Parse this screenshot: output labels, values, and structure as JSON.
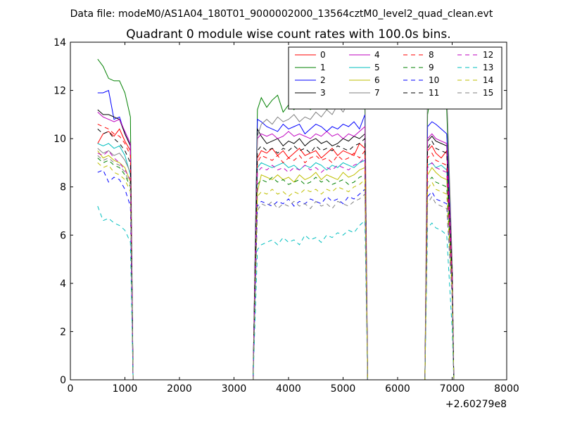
{
  "chart_data": {
    "type": "line",
    "suptitle": "Data file: modeM0/AS1A04_180T01_9000002000_13564cztM0_level2_quad_clean.evt",
    "title": "Quadrant 0 module wise count rates with 100.0s bins.",
    "xlabel": "",
    "ylabel": "",
    "x_offset_label": "+2.60279e8",
    "xlim": [
      0,
      8000
    ],
    "ylim": [
      0,
      14
    ],
    "xticks": [
      0,
      1000,
      2000,
      3000,
      4000,
      5000,
      6000,
      7000,
      8000
    ],
    "yticks": [
      0,
      2,
      4,
      6,
      8,
      10,
      12,
      14
    ],
    "legend_position": "top-right",
    "legend_columns": 4,
    "x": [
      500,
      600,
      700,
      800,
      900,
      1000,
      1100,
      1150,
      1230,
      1300,
      1400,
      1500,
      1600,
      1700,
      1800,
      1900,
      2000,
      2100,
      2200,
      2300,
      2400,
      2500,
      2600,
      2700,
      2800,
      2900,
      3000,
      3100,
      3200,
      3300,
      3350,
      3430,
      3500,
      3600,
      3700,
      3800,
      3900,
      4000,
      4100,
      4200,
      4300,
      4400,
      4500,
      4600,
      4700,
      4800,
      4900,
      5000,
      5100,
      5200,
      5300,
      5400,
      5450,
      5530,
      5600,
      5700,
      5800,
      5900,
      6000,
      6100,
      6200,
      6300,
      6400,
      6500,
      6550,
      6630,
      6700,
      6800,
      6900,
      7000,
      7030
    ],
    "series": [
      {
        "name": "0",
        "color": "#ff0000",
        "dash": "solid",
        "values": [
          9.8,
          10.2,
          10.3,
          10.1,
          10.4,
          9.9,
          9.5,
          0,
          0,
          0,
          0,
          0,
          0,
          0,
          0,
          0,
          0,
          0,
          0,
          0,
          0,
          0,
          0,
          0,
          0,
          0,
          0,
          0,
          0,
          0,
          0,
          9.2,
          9.5,
          9.4,
          9.6,
          9.3,
          9.5,
          9.2,
          9.4,
          9.6,
          9.3,
          9.4,
          9.5,
          9.2,
          9.4,
          9.6,
          9.3,
          9.5,
          9.4,
          9.3,
          9.8,
          9.6,
          0,
          0,
          0,
          0,
          0,
          0,
          0,
          0,
          0,
          0,
          0,
          0,
          9.5,
          9.7,
          9.4,
          9.2,
          9.5,
          4.0,
          0
        ]
      },
      {
        "name": "1",
        "color": "#008000",
        "dash": "solid",
        "values": [
          13.3,
          13.0,
          12.5,
          12.4,
          12.4,
          11.9,
          10.9,
          0,
          0,
          0,
          0,
          0,
          0,
          0,
          0,
          0,
          0,
          0,
          0,
          0,
          0,
          0,
          0,
          0,
          0,
          0,
          0,
          0,
          0,
          0,
          0,
          11.2,
          11.7,
          11.3,
          11.6,
          11.8,
          11.1,
          11.4,
          11.2,
          11.5,
          11.6,
          11.2,
          11.4,
          11.5,
          11.2,
          11.4,
          11.3,
          11.6,
          11.4,
          11.5,
          11.6,
          11.2,
          0,
          0,
          0,
          0,
          0,
          0,
          0,
          0,
          0,
          0,
          0,
          0,
          11.0,
          12.2,
          12.1,
          11.9,
          11.2,
          4.5,
          0
        ]
      },
      {
        "name": "2",
        "color": "#0000ff",
        "dash": "solid",
        "values": [
          11.9,
          11.9,
          12.0,
          10.8,
          10.9,
          10.2,
          9.7,
          0,
          0,
          0,
          0,
          0,
          0,
          0,
          0,
          0,
          0,
          0,
          0,
          0,
          0,
          0,
          0,
          0,
          0,
          0,
          0,
          0,
          0,
          0,
          0,
          10.8,
          10.7,
          10.5,
          10.4,
          10.3,
          10.6,
          10.4,
          10.5,
          10.6,
          10.2,
          10.4,
          10.6,
          10.5,
          10.3,
          10.5,
          10.4,
          10.6,
          10.5,
          10.7,
          10.4,
          11.0,
          0,
          0,
          0,
          0,
          0,
          0,
          0,
          0,
          0,
          0,
          0,
          0,
          10.5,
          10.7,
          10.6,
          10.4,
          10.2,
          4.8,
          0
        ]
      },
      {
        "name": "3",
        "color": "#000000",
        "dash": "solid",
        "values": [
          11.2,
          11.0,
          11.0,
          10.9,
          10.8,
          10.2,
          9.7,
          0,
          0,
          0,
          0,
          0,
          0,
          0,
          0,
          0,
          0,
          0,
          0,
          0,
          0,
          0,
          0,
          0,
          0,
          0,
          0,
          0,
          0,
          0,
          0,
          10.4,
          10.1,
          9.8,
          9.9,
          10.0,
          9.7,
          9.9,
          9.8,
          10.0,
          9.7,
          9.9,
          10.0,
          9.8,
          9.9,
          9.7,
          9.8,
          10.0,
          9.9,
          10.1,
          10.0,
          10.2,
          0,
          0,
          0,
          0,
          0,
          0,
          0,
          0,
          0,
          0,
          0,
          0,
          9.9,
          10.1,
          9.9,
          9.8,
          9.7,
          4.3,
          0
        ]
      },
      {
        "name": "4",
        "color": "#bf00bf",
        "dash": "solid",
        "values": [
          11.1,
          10.9,
          10.8,
          10.7,
          10.8,
          10.3,
          9.8,
          0,
          0,
          0,
          0,
          0,
          0,
          0,
          0,
          0,
          0,
          0,
          0,
          0,
          0,
          0,
          0,
          0,
          0,
          0,
          0,
          0,
          0,
          0,
          0,
          10.0,
          10.2,
          10.1,
          10.2,
          10.0,
          10.1,
          10.3,
          10.1,
          10.2,
          10.1,
          10.0,
          10.2,
          10.1,
          10.3,
          10.1,
          10.2,
          10.0,
          10.2,
          10.1,
          10.3,
          10.5,
          0,
          0,
          0,
          0,
          0,
          0,
          0,
          0,
          0,
          0,
          0,
          0,
          10.0,
          10.2,
          10.0,
          9.9,
          9.8,
          4.6,
          0
        ]
      },
      {
        "name": "5",
        "color": "#00bfbf",
        "dash": "solid",
        "values": [
          9.8,
          9.7,
          9.8,
          9.6,
          9.7,
          9.3,
          8.5,
          0,
          0,
          0,
          0,
          0,
          0,
          0,
          0,
          0,
          0,
          0,
          0,
          0,
          0,
          0,
          0,
          0,
          0,
          0,
          0,
          0,
          0,
          0,
          0,
          8.8,
          9.0,
          8.9,
          8.8,
          8.9,
          9.0,
          8.8,
          8.9,
          8.7,
          8.9,
          8.8,
          9.0,
          8.9,
          8.7,
          8.9,
          8.8,
          9.0,
          8.9,
          8.8,
          9.0,
          9.1,
          0,
          0,
          0,
          0,
          0,
          0,
          0,
          0,
          0,
          0,
          0,
          0,
          8.9,
          9.0,
          8.8,
          8.9,
          8.7,
          4.1,
          0
        ]
      },
      {
        "name": "6",
        "color": "#bfbf00",
        "dash": "solid",
        "values": [
          9.5,
          9.2,
          9.3,
          9.1,
          9.0,
          8.8,
          8.2,
          0,
          0,
          0,
          0,
          0,
          0,
          0,
          0,
          0,
          0,
          0,
          0,
          0,
          0,
          0,
          0,
          0,
          0,
          0,
          0,
          0,
          0,
          0,
          0,
          7.8,
          8.5,
          8.4,
          8.3,
          8.5,
          8.3,
          8.4,
          8.2,
          8.5,
          8.3,
          8.4,
          8.6,
          8.3,
          8.5,
          8.4,
          8.3,
          8.6,
          8.4,
          8.5,
          8.7,
          8.8,
          0,
          0,
          0,
          0,
          0,
          0,
          0,
          0,
          0,
          0,
          0,
          0,
          8.5,
          8.8,
          8.6,
          8.4,
          8.3,
          3.8,
          0
        ]
      },
      {
        "name": "7",
        "color": "#808080",
        "dash": "solid",
        "values": [
          9.6,
          9.4,
          9.5,
          9.3,
          9.4,
          9.1,
          8.6,
          0,
          0,
          0,
          0,
          0,
          0,
          0,
          0,
          0,
          0,
          0,
          0,
          0,
          0,
          0,
          0,
          0,
          0,
          0,
          0,
          0,
          0,
          0,
          0,
          10.1,
          10.6,
          10.8,
          10.6,
          10.9,
          10.7,
          10.8,
          11.0,
          10.7,
          10.9,
          10.8,
          11.1,
          10.9,
          11.2,
          11.0,
          11.4,
          11.1,
          11.5,
          11.6,
          11.8,
          12.5,
          0,
          0,
          0,
          0,
          0,
          0,
          0,
          0,
          0,
          0,
          0,
          0,
          12.7,
          13.1,
          12.6,
          12.3,
          11.9,
          5.0,
          0
        ]
      },
      {
        "name": "8",
        "color": "#ff0000",
        "dash": "dashed",
        "values": [
          10.6,
          10.5,
          10.4,
          10.2,
          10.1,
          9.8,
          9.3,
          0,
          0,
          0,
          0,
          0,
          0,
          0,
          0,
          0,
          0,
          0,
          0,
          0,
          0,
          0,
          0,
          0,
          0,
          0,
          0,
          0,
          0,
          0,
          0,
          9.0,
          9.3,
          9.2,
          9.1,
          9.3,
          9.0,
          9.2,
          9.1,
          9.3,
          9.0,
          9.2,
          9.3,
          9.1,
          9.2,
          9.0,
          9.3,
          9.1,
          9.2,
          9.4,
          9.2,
          9.5,
          0,
          0,
          0,
          0,
          0,
          0,
          0,
          0,
          0,
          0,
          0,
          0,
          9.2,
          9.4,
          9.1,
          9.0,
          8.9,
          4.2,
          0
        ]
      },
      {
        "name": "9",
        "color": "#008000",
        "dash": "dashed",
        "values": [
          9.2,
          9.0,
          9.1,
          8.9,
          8.8,
          8.5,
          8.0,
          0,
          0,
          0,
          0,
          0,
          0,
          0,
          0,
          0,
          0,
          0,
          0,
          0,
          0,
          0,
          0,
          0,
          0,
          0,
          0,
          0,
          0,
          0,
          0,
          8.1,
          8.3,
          8.2,
          8.4,
          8.2,
          8.3,
          8.1,
          8.2,
          8.3,
          8.1,
          8.2,
          8.4,
          8.2,
          8.3,
          8.1,
          8.2,
          8.3,
          8.1,
          8.2,
          8.4,
          8.5,
          0,
          0,
          0,
          0,
          0,
          0,
          0,
          0,
          0,
          0,
          0,
          0,
          8.2,
          8.4,
          8.2,
          8.1,
          8.0,
          3.9,
          0
        ]
      },
      {
        "name": "10",
        "color": "#0000ff",
        "dash": "dashed",
        "values": [
          8.6,
          8.7,
          8.2,
          8.4,
          8.3,
          7.9,
          7.2,
          0,
          0,
          0,
          0,
          0,
          0,
          0,
          0,
          0,
          0,
          0,
          0,
          0,
          0,
          0,
          0,
          0,
          0,
          0,
          0,
          0,
          0,
          0,
          0,
          7.2,
          7.4,
          7.3,
          7.2,
          7.4,
          7.3,
          7.5,
          7.2,
          7.4,
          7.3,
          7.5,
          7.4,
          7.3,
          7.6,
          7.4,
          7.5,
          7.3,
          7.6,
          7.5,
          7.7,
          7.9,
          0,
          0,
          0,
          0,
          0,
          0,
          0,
          0,
          0,
          0,
          0,
          0,
          7.6,
          7.8,
          7.5,
          7.4,
          7.3,
          3.5,
          0
        ]
      },
      {
        "name": "11",
        "color": "#000000",
        "dash": "dashed",
        "values": [
          10.4,
          10.2,
          10.3,
          10.0,
          9.8,
          9.5,
          9.0,
          0,
          0,
          0,
          0,
          0,
          0,
          0,
          0,
          0,
          0,
          0,
          0,
          0,
          0,
          0,
          0,
          0,
          0,
          0,
          0,
          0,
          0,
          0,
          0,
          9.5,
          9.7,
          9.5,
          9.6,
          9.4,
          9.6,
          9.5,
          9.7,
          9.5,
          9.6,
          9.4,
          9.7,
          9.5,
          9.6,
          9.5,
          9.7,
          9.6,
          9.5,
          9.7,
          9.8,
          10.0,
          0,
          0,
          0,
          0,
          0,
          0,
          0,
          0,
          0,
          0,
          0,
          0,
          9.6,
          9.9,
          9.6,
          9.5,
          9.4,
          4.4,
          0
        ]
      },
      {
        "name": "12",
        "color": "#bf00bf",
        "dash": "dashed",
        "values": [
          9.4,
          9.3,
          9.5,
          9.2,
          9.0,
          8.7,
          8.3,
          0,
          0,
          0,
          0,
          0,
          0,
          0,
          0,
          0,
          0,
          0,
          0,
          0,
          0,
          0,
          0,
          0,
          0,
          0,
          0,
          0,
          0,
          0,
          0,
          8.6,
          8.8,
          8.7,
          8.9,
          8.7,
          8.8,
          8.6,
          8.8,
          8.7,
          8.9,
          8.7,
          8.8,
          8.6,
          8.8,
          8.7,
          8.9,
          8.8,
          8.7,
          8.9,
          9.0,
          9.2,
          0,
          0,
          0,
          0,
          0,
          0,
          0,
          0,
          0,
          0,
          0,
          0,
          8.8,
          9.0,
          8.8,
          8.7,
          8.6,
          4.0,
          0
        ]
      },
      {
        "name": "13",
        "color": "#00bfbf",
        "dash": "dashed",
        "values": [
          7.2,
          6.6,
          6.7,
          6.5,
          6.4,
          6.2,
          5.7,
          0,
          0,
          0,
          0,
          0,
          0,
          0,
          0,
          0,
          0,
          0,
          0,
          0,
          0,
          0,
          0,
          0,
          0,
          0,
          0,
          0,
          0,
          0,
          0,
          5.4,
          5.6,
          5.7,
          5.8,
          5.6,
          5.9,
          5.7,
          5.8,
          5.6,
          6.0,
          5.8,
          5.9,
          5.7,
          6.0,
          5.9,
          6.1,
          6.0,
          6.2,
          6.1,
          6.4,
          6.6,
          0,
          0,
          0,
          0,
          0,
          0,
          0,
          0,
          0,
          0,
          0,
          0,
          6.3,
          6.5,
          6.3,
          6.2,
          6.0,
          2.1,
          0
        ]
      },
      {
        "name": "14",
        "color": "#bfbf00",
        "dash": "dashed",
        "values": [
          9.0,
          8.8,
          8.9,
          8.6,
          8.5,
          8.3,
          7.8,
          0,
          0,
          0,
          0,
          0,
          0,
          0,
          0,
          0,
          0,
          0,
          0,
          0,
          0,
          0,
          0,
          0,
          0,
          0,
          0,
          0,
          0,
          0,
          0,
          7.6,
          7.8,
          7.7,
          7.9,
          7.7,
          7.8,
          7.6,
          7.8,
          7.7,
          7.9,
          7.8,
          7.9,
          7.7,
          7.9,
          7.8,
          8.0,
          7.9,
          7.8,
          8.0,
          8.1,
          8.3,
          0,
          0,
          0,
          0,
          0,
          0,
          0,
          0,
          0,
          0,
          0,
          0,
          7.9,
          8.2,
          7.9,
          7.8,
          7.7,
          3.6,
          0
        ]
      },
      {
        "name": "15",
        "color": "#808080",
        "dash": "dashed",
        "values": [
          9.3,
          9.1,
          9.2,
          9.0,
          8.9,
          8.6,
          8.1,
          0,
          0,
          0,
          0,
          0,
          0,
          0,
          0,
          0,
          0,
          0,
          0,
          0,
          0,
          0,
          0,
          0,
          0,
          0,
          0,
          0,
          0,
          0,
          0,
          7.0,
          7.3,
          7.2,
          7.4,
          7.1,
          7.3,
          7.2,
          7.4,
          7.2,
          7.3,
          7.1,
          7.4,
          7.2,
          7.3,
          7.1,
          7.4,
          7.3,
          7.2,
          7.4,
          7.5,
          7.7,
          0,
          0,
          0,
          0,
          0,
          0,
          0,
          0,
          0,
          0,
          0,
          0,
          7.3,
          7.6,
          7.3,
          7.2,
          7.1,
          3.4,
          0
        ]
      }
    ]
  }
}
